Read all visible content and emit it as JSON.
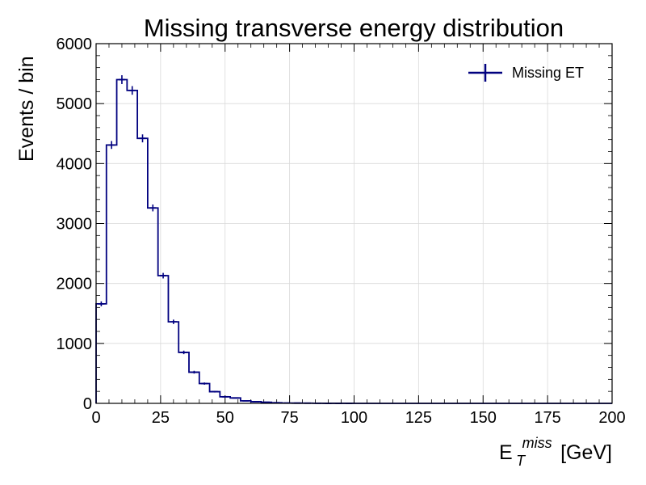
{
  "chart_data": {
    "type": "histogram",
    "title": "Missing transverse energy distribution",
    "xlabel": {
      "main": "E",
      "sub": "T",
      "sup": "miss",
      "unit": "[GeV]"
    },
    "ylabel": "Events / bin",
    "xlim": [
      0,
      200
    ],
    "ylim": [
      0,
      6000
    ],
    "xticks": [
      "0",
      "25",
      "50",
      "75",
      "100",
      "125",
      "150",
      "175",
      "200"
    ],
    "yticks": [
      "0",
      "1000",
      "2000",
      "3000",
      "4000",
      "5000",
      "6000"
    ],
    "grid": true,
    "legend": {
      "position": "top-right"
    },
    "bin_width": 4,
    "series": [
      {
        "name": "Missing ET",
        "color": "#00007f",
        "bin_edges": [
          0,
          4,
          8,
          12,
          16,
          20,
          24,
          28,
          32,
          36,
          40,
          44,
          48,
          52,
          56,
          60,
          64,
          68,
          72,
          76,
          80,
          84,
          88,
          92,
          96,
          100,
          104,
          108,
          112,
          116,
          120,
          124,
          128,
          132,
          136,
          140,
          144,
          148,
          152,
          156,
          160,
          164,
          168,
          172,
          176,
          180,
          184,
          188,
          192,
          196,
          200
        ],
        "values": [
          1660,
          4310,
          5400,
          5220,
          4420,
          3260,
          2130,
          1360,
          850,
          520,
          330,
          195,
          110,
          90,
          42,
          28,
          18,
          10,
          5,
          4,
          3,
          2,
          1,
          1,
          1,
          0,
          0,
          0,
          0,
          0,
          0,
          0,
          0,
          0,
          0,
          0,
          0,
          0,
          0,
          0,
          0,
          0,
          0,
          0,
          0,
          0,
          0,
          0,
          0,
          0
        ]
      }
    ]
  }
}
